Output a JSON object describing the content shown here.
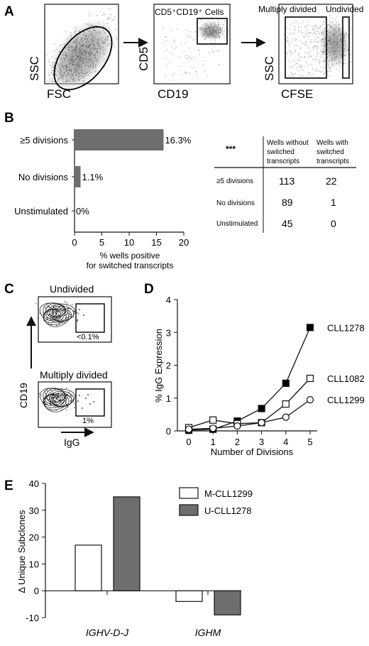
{
  "panels": {
    "A": {
      "label": "A",
      "plot1": {
        "xlabel": "FSC",
        "ylabel": "SSC"
      },
      "plot2": {
        "xlabel": "CD19",
        "ylabel": "CD5",
        "gate_label": "CD5⁺CD19⁺ Cells"
      },
      "plot3": {
        "xlabel": "CFSE",
        "ylabel": "SSC",
        "gate_left_label": "Multiply divided",
        "gate_right_label": "Undivided"
      }
    },
    "B": {
      "label": "B",
      "table": {
        "significance": "***",
        "col_headers": [
          "Wells without switched transcripts",
          "Wells with switched transcripts"
        ],
        "rows": [
          {
            "label": "≥5 divisions",
            "values": [
              "113",
              "22"
            ]
          },
          {
            "label": "No divisions",
            "values": [
              "89",
              "1"
            ]
          },
          {
            "label": "Unstimulated",
            "values": [
              "45",
              "0"
            ]
          }
        ]
      }
    },
    "C": {
      "label": "C",
      "top_title": "Undivided",
      "bottom_title": "Multiply divided",
      "top_gate_value": "<0.1%",
      "bottom_gate_value": "1%",
      "ylabel": "CD19",
      "xlabel": "IgG"
    },
    "D": {
      "label": "D"
    },
    "E": {
      "label": "E"
    }
  },
  "chart_data": [
    {
      "id": "B",
      "type": "bar",
      "orientation": "horizontal",
      "categories": [
        "≥5 divisions",
        "No divisions",
        "Unstimulated"
      ],
      "values": [
        16.3,
        1.1,
        0
      ],
      "value_labels": [
        "16.3%",
        "1.1%",
        "0%"
      ],
      "xlabel": "% wells positive for switched transcripts",
      "xlim": [
        0,
        20
      ],
      "xticks": [
        "0",
        "5",
        "10",
        "15",
        "20"
      ],
      "bar_color": "#6e6e6e"
    },
    {
      "id": "D",
      "type": "line",
      "x": [
        0,
        1,
        2,
        3,
        4,
        5
      ],
      "xticks": [
        "0",
        "1",
        "2",
        "3",
        "4",
        "5"
      ],
      "series": [
        {
          "name": "CLL1278",
          "marker": "filled-square",
          "values": [
            0.02,
            0.05,
            0.3,
            0.68,
            1.45,
            3.15
          ]
        },
        {
          "name": "CLL1082",
          "marker": "open-square",
          "values": [
            0.1,
            0.33,
            0.22,
            0.25,
            0.82,
            1.6
          ]
        },
        {
          "name": "CLL1299",
          "marker": "open-circle",
          "values": [
            0.05,
            0.08,
            0.15,
            0.25,
            0.42,
            0.95
          ]
        }
      ],
      "xlabel": "Number of Divisions",
      "ylabel": "% IgG Expression",
      "ylim": [
        0,
        4
      ],
      "yticks": [
        "0",
        "1",
        "2",
        "3",
        "4"
      ]
    },
    {
      "id": "E",
      "type": "bar",
      "categories": [
        "IGHV-D-J",
        "IGHM"
      ],
      "series": [
        {
          "name": "M-CLL1299",
          "color": "#ffffff",
          "values": [
            17,
            -4
          ]
        },
        {
          "name": "U-CLL1278",
          "color": "#6e6e6e",
          "values": [
            35,
            -9
          ]
        }
      ],
      "ylabel": "Δ Unique Subclones",
      "ylim": [
        -10,
        40
      ],
      "yticks": [
        "-10",
        "0",
        "10",
        "20",
        "30",
        "40"
      ],
      "legend_position": "top-right"
    }
  ]
}
